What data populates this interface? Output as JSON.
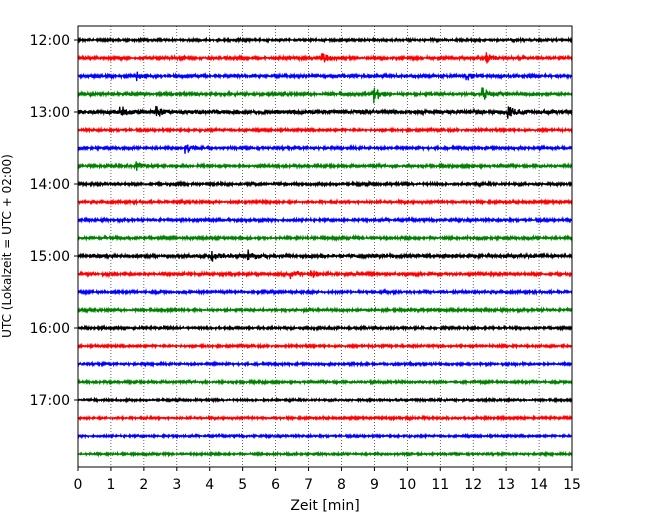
{
  "chart_data": {
    "type": "line",
    "subtype": "helicorder",
    "title": "",
    "xlabel": "Zeit  [min]",
    "ylabel": "UTC (Lokalzeit = UTC + 02:00)",
    "xlim": [
      0,
      15
    ],
    "x_ticks": [
      "0",
      "1",
      "2",
      "3",
      "4",
      "5",
      "6",
      "7",
      "8",
      "9",
      "10",
      "11",
      "12",
      "13",
      "14",
      "15"
    ],
    "y_ticks": [
      "12:00",
      "13:00",
      "14:00",
      "15:00",
      "16:00",
      "17:00"
    ],
    "grid": {
      "x": true,
      "y": false,
      "style": "dotted"
    },
    "trace_start_times": [
      "12:00",
      "12:15",
      "12:30",
      "12:45",
      "13:00",
      "13:15",
      "13:30",
      "13:45",
      "14:00",
      "14:15",
      "14:30",
      "14:45",
      "15:00",
      "15:15",
      "15:30",
      "15:45",
      "16:00",
      "16:15",
      "16:30",
      "16:45",
      "17:00",
      "17:15",
      "17:30",
      "17:45"
    ],
    "trace_colors": [
      "#000000",
      "#ff0000",
      "#0000ff",
      "#008000"
    ],
    "trace_minutes": 15,
    "trace_amplitude": [
      0.25,
      0.3,
      0.33,
      0.32,
      0.42,
      0.25,
      0.28,
      0.28,
      0.28,
      0.27,
      0.27,
      0.28,
      0.35,
      0.3,
      0.27,
      0.27,
      0.25,
      0.24,
      0.24,
      0.24,
      0.22,
      0.24,
      0.22,
      0.22
    ],
    "events": [
      {
        "trace": 1,
        "minute": 7.4,
        "amp": 0.55
      },
      {
        "trace": 1,
        "minute": 12.4,
        "amp": 0.5
      },
      {
        "trace": 2,
        "minute": 1.8,
        "amp": 0.45
      },
      {
        "trace": 2,
        "minute": 11.8,
        "amp": 0.4
      },
      {
        "trace": 3,
        "minute": 9.0,
        "amp": 0.9
      },
      {
        "trace": 3,
        "minute": 12.3,
        "amp": 0.8
      },
      {
        "trace": 4,
        "minute": 1.3,
        "amp": 0.65
      },
      {
        "trace": 4,
        "minute": 2.4,
        "amp": 0.6
      },
      {
        "trace": 4,
        "minute": 13.1,
        "amp": 0.5
      },
      {
        "trace": 6,
        "minute": 3.3,
        "amp": 0.5
      },
      {
        "trace": 7,
        "minute": 1.8,
        "amp": 0.5
      },
      {
        "trace": 12,
        "minute": 4.1,
        "amp": 0.55
      },
      {
        "trace": 12,
        "minute": 5.2,
        "amp": 0.5
      },
      {
        "trace": 13,
        "minute": 6.5,
        "amp": 0.45
      },
      {
        "trace": 13,
        "minute": 7.1,
        "amp": 0.4
      }
    ]
  }
}
